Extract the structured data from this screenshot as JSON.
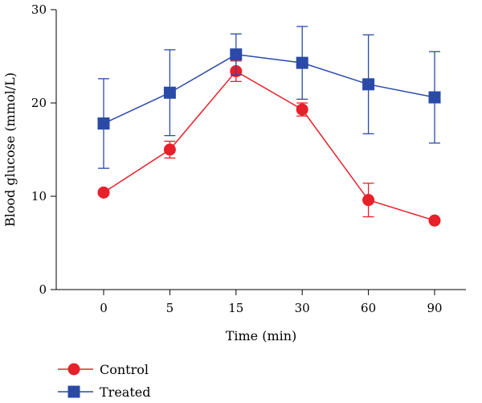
{
  "chart_data": {
    "type": "line",
    "categories": [
      "0",
      "5",
      "15",
      "30",
      "60",
      "90"
    ],
    "xlabel": "Time (min)",
    "ylabel": "Blood glucose (mmol/L)",
    "ylim": [
      0,
      30
    ],
    "yticks": [
      "0",
      "10",
      "20",
      "30"
    ],
    "grid": false,
    "legend": "bottom-left",
    "series": [
      {
        "name": "Control",
        "color": "#e8202a",
        "marker": "circle",
        "values": [
          10.4,
          15.0,
          23.4,
          19.3,
          9.6,
          7.4
        ],
        "err_low": [
          0,
          0.9,
          1.1,
          0.7,
          1.8,
          0
        ],
        "err_high": [
          0,
          0.9,
          1.1,
          0.7,
          1.8,
          0
        ]
      },
      {
        "name": "Treated",
        "color": "#2b4aa8",
        "marker": "square",
        "values": [
          17.8,
          21.1,
          25.2,
          24.3,
          22.0,
          20.6
        ],
        "err_low": [
          4.8,
          4.6,
          2.2,
          3.9,
          5.3,
          4.9
        ],
        "err_high": [
          4.8,
          4.6,
          2.2,
          3.9,
          5.3,
          4.9
        ]
      }
    ]
  }
}
